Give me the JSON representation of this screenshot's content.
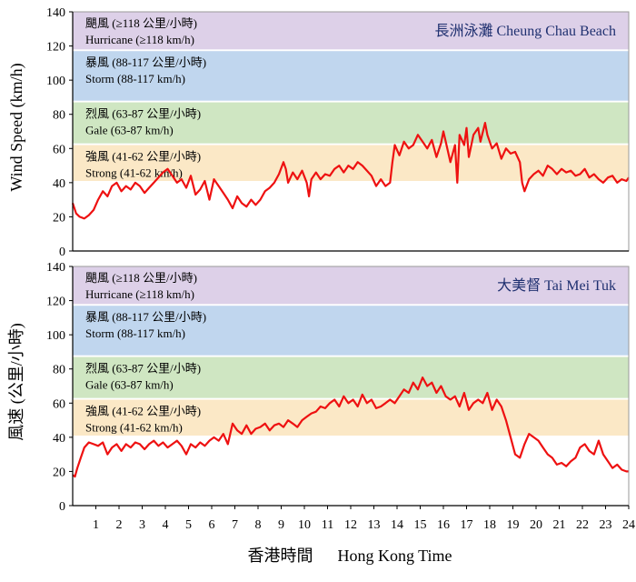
{
  "figure": {
    "ylabel_top": "Wind Speed (km/h)",
    "ylabel_bottom": "風速 (公里/小時)",
    "xlabel": "香港時間      Hong Kong Time"
  },
  "chart_data": [
    {
      "type": "line",
      "title": "長洲泳灘  Cheung Chau Beach",
      "xlabel": "",
      "ylabel": "Wind Speed (km/h)",
      "xlim": [
        0,
        24
      ],
      "ylim": [
        0,
        140
      ],
      "yticks": [
        0,
        20,
        40,
        60,
        80,
        100,
        120,
        140
      ],
      "xticks": [],
      "grid": false,
      "bands": [
        {
          "from": 118,
          "to": 140,
          "color": "#ddd0e8",
          "label_zh": "颶風 (≥118 公里/小時)",
          "label_en": "Hurricane (≥118 km/h)"
        },
        {
          "from": 88,
          "to": 117,
          "color": "#c0d6ee",
          "label_zh": "暴風 (88-117 公里/小時)",
          "label_en": "Storm (88-117 km/h)"
        },
        {
          "from": 63,
          "to": 87,
          "color": "#cfe6c2",
          "label_zh": "烈風 (63-87 公里/小時)",
          "label_en": "Gale (63-87 km/h)"
        },
        {
          "from": 41,
          "to": 62,
          "color": "#fbe8c6",
          "label_zh": "強風 (41-62 公里/小時)",
          "label_en": "Strong (41-62 km/h)"
        }
      ],
      "series": [
        {
          "color": "#ee1111",
          "x": [
            0,
            0.15,
            0.3,
            0.5,
            0.7,
            0.9,
            1.1,
            1.3,
            1.5,
            1.7,
            1.9,
            2.1,
            2.3,
            2.5,
            2.7,
            2.9,
            3.1,
            3.3,
            3.5,
            3.7,
            3.9,
            4.1,
            4.3,
            4.5,
            4.7,
            4.9,
            5.1,
            5.3,
            5.5,
            5.7,
            5.9,
            6.1,
            6.3,
            6.5,
            6.7,
            6.9,
            7.1,
            7.3,
            7.5,
            7.7,
            7.9,
            8.1,
            8.3,
            8.5,
            8.7,
            8.9,
            9.1,
            9.2,
            9.3,
            9.5,
            9.7,
            9.9,
            10.1,
            10.2,
            10.3,
            10.5,
            10.7,
            10.9,
            11.1,
            11.3,
            11.5,
            11.7,
            11.9,
            12.1,
            12.3,
            12.5,
            12.7,
            12.9,
            13.1,
            13.3,
            13.5,
            13.7,
            13.8,
            13.9,
            14.1,
            14.3,
            14.5,
            14.7,
            14.9,
            15.1,
            15.3,
            15.5,
            15.7,
            15.9,
            16.0,
            16.1,
            16.3,
            16.5,
            16.6,
            16.7,
            16.9,
            17.0,
            17.1,
            17.3,
            17.5,
            17.6,
            17.8,
            17.9,
            18.1,
            18.3,
            18.5,
            18.7,
            18.9,
            19.1,
            19.3,
            19.4,
            19.5,
            19.7,
            19.9,
            20.1,
            20.3,
            20.5,
            20.7,
            20.9,
            21.1,
            21.3,
            21.5,
            21.7,
            21.9,
            22.1,
            22.3,
            22.5,
            22.7,
            22.9,
            23.1,
            23.3,
            23.5,
            23.7,
            23.9,
            24
          ],
          "y": [
            28,
            22,
            20,
            19,
            21,
            24,
            30,
            35,
            32,
            38,
            40,
            35,
            38,
            36,
            40,
            38,
            34,
            37,
            40,
            43,
            46,
            48,
            44,
            40,
            42,
            37,
            44,
            33,
            36,
            41,
            30,
            42,
            38,
            34,
            30,
            25,
            32,
            28,
            26,
            30,
            27,
            30,
            35,
            37,
            40,
            45,
            52,
            48,
            40,
            46,
            42,
            47,
            40,
            32,
            42,
            46,
            42,
            45,
            44,
            48,
            50,
            46,
            50,
            48,
            52,
            50,
            47,
            44,
            38,
            42,
            38,
            40,
            52,
            62,
            56,
            64,
            60,
            62,
            68,
            64,
            60,
            65,
            55,
            63,
            70,
            64,
            52,
            62,
            40,
            68,
            62,
            72,
            55,
            68,
            72,
            64,
            75,
            68,
            60,
            63,
            54,
            60,
            57,
            58,
            52,
            40,
            35,
            42,
            45,
            47,
            44,
            50,
            48,
            45,
            48,
            46,
            47,
            44,
            45,
            48,
            43,
            45,
            42,
            40,
            43,
            44,
            40,
            42,
            41,
            43
          ]
        }
      ]
    },
    {
      "type": "line",
      "title": "大美督  Tai Mei Tuk",
      "xlabel": "Hong Kong Time",
      "ylabel": "風速 (公里/小時)",
      "xlim": [
        0,
        24
      ],
      "ylim": [
        0,
        140
      ],
      "yticks": [
        0,
        20,
        40,
        60,
        80,
        100,
        120,
        140
      ],
      "xticks": [
        1,
        2,
        3,
        4,
        5,
        6,
        7,
        8,
        9,
        10,
        11,
        12,
        13,
        14,
        15,
        16,
        17,
        18,
        19,
        20,
        21,
        22,
        23,
        24
      ],
      "grid": false,
      "bands": [
        {
          "from": 118,
          "to": 140,
          "color": "#ddd0e8",
          "label_zh": "颶風 (≥118 公里/小時)",
          "label_en": "Hurricane (≥118 km/h)"
        },
        {
          "from": 88,
          "to": 117,
          "color": "#c0d6ee",
          "label_zh": "暴風 (88-117 公里/小時)",
          "label_en": "Storm (88-117 km/h)"
        },
        {
          "from": 63,
          "to": 87,
          "color": "#cfe6c2",
          "label_zh": "烈風 (63-87 公里/小時)",
          "label_en": "Gale (63-87 km/h)"
        },
        {
          "from": 41,
          "to": 62,
          "color": "#fbe8c6",
          "label_zh": "強風 (41-62 公里/小時)",
          "label_en": "Strong (41-62 km/h)"
        }
      ],
      "series": [
        {
          "color": "#ee1111",
          "x": [
            0,
            0.1,
            0.2,
            0.35,
            0.5,
            0.7,
            0.9,
            1.1,
            1.3,
            1.5,
            1.7,
            1.9,
            2.1,
            2.3,
            2.5,
            2.7,
            2.9,
            3.1,
            3.3,
            3.5,
            3.7,
            3.9,
            4.1,
            4.3,
            4.5,
            4.7,
            4.9,
            5.1,
            5.3,
            5.5,
            5.7,
            5.9,
            6.1,
            6.3,
            6.5,
            6.7,
            6.9,
            7.1,
            7.3,
            7.5,
            7.7,
            7.9,
            8.1,
            8.3,
            8.5,
            8.7,
            8.9,
            9.1,
            9.3,
            9.5,
            9.7,
            9.9,
            10.1,
            10.3,
            10.5,
            10.7,
            10.9,
            11.1,
            11.3,
            11.5,
            11.7,
            11.9,
            12.1,
            12.3,
            12.5,
            12.7,
            12.9,
            13.1,
            13.3,
            13.5,
            13.7,
            13.9,
            14.1,
            14.3,
            14.5,
            14.7,
            14.9,
            15.1,
            15.3,
            15.5,
            15.7,
            15.9,
            16.1,
            16.3,
            16.5,
            16.7,
            16.9,
            17.1,
            17.3,
            17.5,
            17.7,
            17.9,
            18.1,
            18.3,
            18.5,
            18.7,
            18.9,
            19.1,
            19.3,
            19.5,
            19.7,
            19.9,
            20.1,
            20.3,
            20.5,
            20.7,
            20.9,
            21.1,
            21.3,
            21.5,
            21.7,
            21.9,
            22.1,
            22.3,
            22.5,
            22.7,
            22.9,
            23.1,
            23.3,
            23.5,
            23.7,
            23.9,
            24
          ],
          "y": [
            18,
            17,
            22,
            28,
            34,
            37,
            36,
            35,
            37,
            30,
            34,
            36,
            32,
            36,
            34,
            37,
            36,
            33,
            36,
            38,
            35,
            37,
            34,
            36,
            38,
            35,
            30,
            36,
            34,
            37,
            35,
            38,
            40,
            38,
            42,
            36,
            48,
            44,
            42,
            47,
            42,
            45,
            46,
            48,
            44,
            47,
            48,
            46,
            50,
            48,
            46,
            50,
            52,
            54,
            55,
            58,
            57,
            60,
            62,
            58,
            64,
            60,
            62,
            58,
            65,
            60,
            62,
            57,
            58,
            60,
            62,
            60,
            64,
            68,
            66,
            72,
            68,
            75,
            70,
            72,
            66,
            70,
            64,
            62,
            64,
            58,
            66,
            56,
            60,
            62,
            60,
            66,
            56,
            62,
            58,
            50,
            40,
            30,
            28,
            36,
            42,
            40,
            38,
            34,
            30,
            28,
            24,
            25,
            23,
            26,
            28,
            34,
            36,
            32,
            30,
            38,
            30,
            26,
            22,
            24,
            21,
            20,
            20
          ]
        }
      ]
    }
  ]
}
